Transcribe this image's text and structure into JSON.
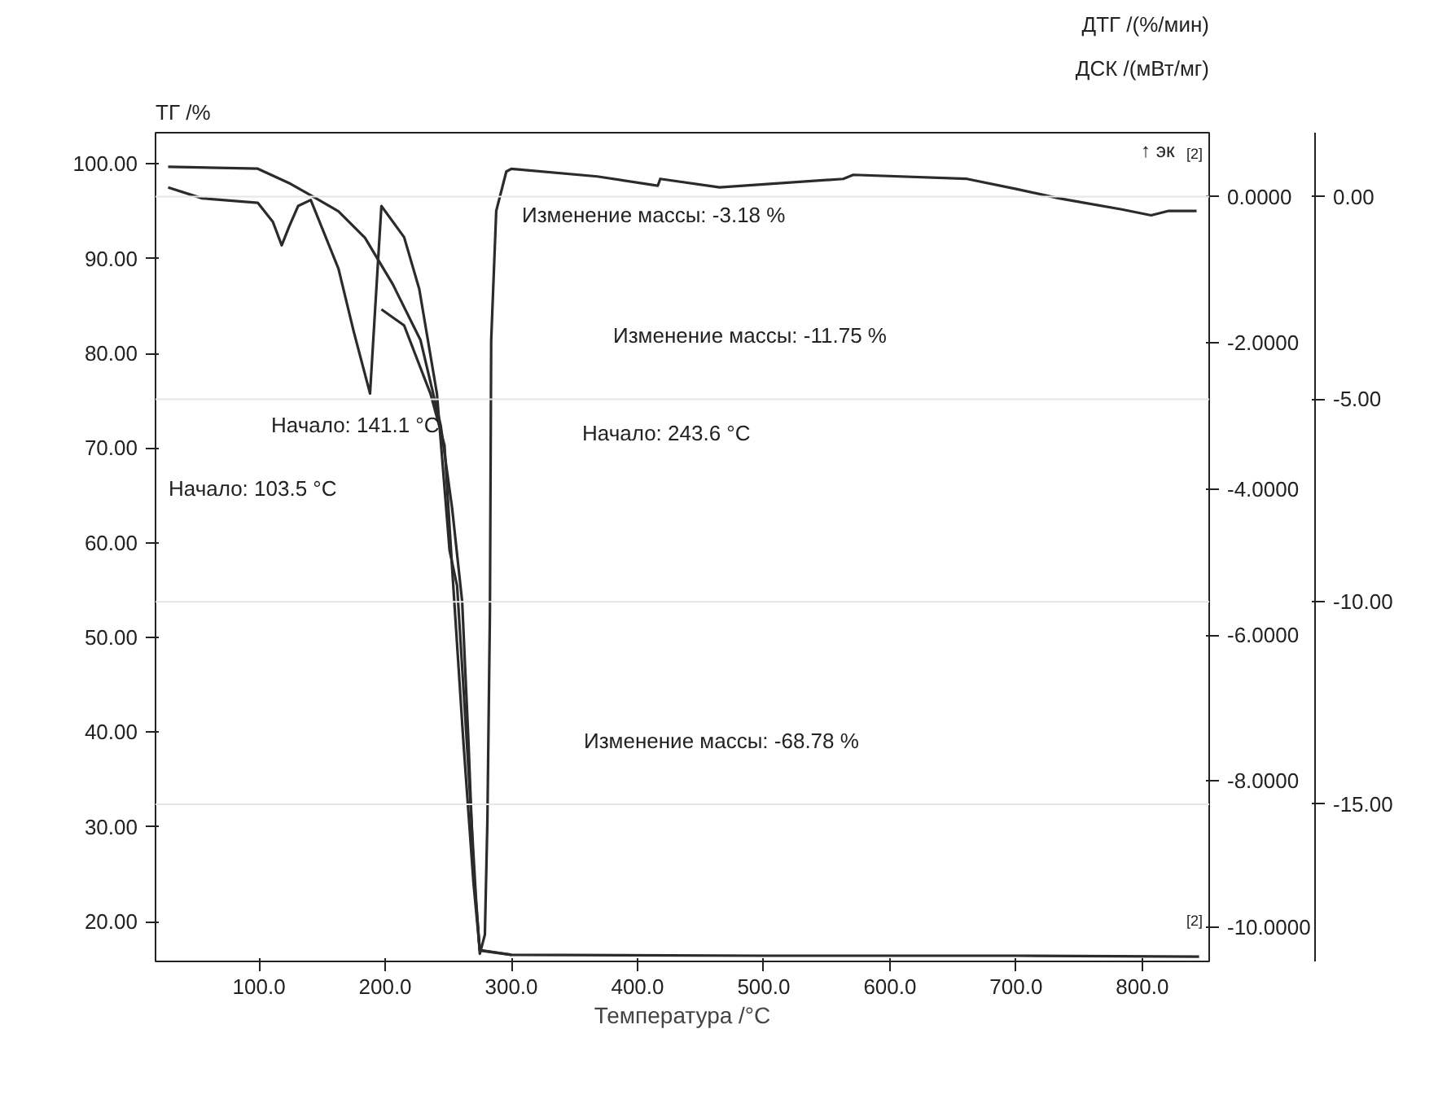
{
  "chart_data": {
    "type": "line",
    "xlabel": "Температура /°C",
    "ylabel": "ТГ /%",
    "y2label": "ДСК /(мВт/мг)",
    "y3label": "ДТГ /(%/мин)",
    "xlim": [
      18,
      853
    ],
    "xticks": [
      {
        "value": 100,
        "label": "100.0"
      },
      {
        "value": 200,
        "label": "200.0"
      },
      {
        "value": 300,
        "label": "300.0"
      },
      {
        "value": 400,
        "label": "400.0"
      },
      {
        "value": 500,
        "label": "500.0"
      },
      {
        "value": 600,
        "label": "600.0"
      },
      {
        "value": 700,
        "label": "700.0"
      },
      {
        "value": 800,
        "label": "800.0"
      }
    ],
    "ylim": [
      15.8,
      103.3
    ],
    "yticks": [
      {
        "value": 20,
        "label": "20.00"
      },
      {
        "value": 30,
        "label": "30.00"
      },
      {
        "value": 40,
        "label": "40.00"
      },
      {
        "value": 50,
        "label": "50.00"
      },
      {
        "value": 60,
        "label": "60.00"
      },
      {
        "value": 70,
        "label": "70.00"
      },
      {
        "value": 80,
        "label": "80.00"
      },
      {
        "value": 90,
        "label": "90.00"
      },
      {
        "value": 100,
        "label": "100.00"
      }
    ],
    "y2lim": [
      -10.47,
      0.88
    ],
    "y2ticks": [
      {
        "value": 0,
        "label": "0.0000"
      },
      {
        "value": -2,
        "label": "-2.0000"
      },
      {
        "value": -4,
        "label": "-4.0000"
      },
      {
        "value": -6,
        "label": "-6.0000"
      },
      {
        "value": -8,
        "label": "-8.0000"
      },
      {
        "value": -10,
        "label": "-10.0000"
      }
    ],
    "y3lim": [
      -18.88,
      1.58
    ],
    "y3ticks": [
      {
        "value": 0,
        "label": "0.00"
      },
      {
        "value": -5,
        "label": "-5.00"
      },
      {
        "value": -10,
        "label": "-10.00"
      },
      {
        "value": -15,
        "label": "-15.00"
      }
    ],
    "ref_lines": [
      {
        "axis": "y3",
        "value": 0,
        "color": "#e6e6e6"
      },
      {
        "axis": "y3",
        "value": -5,
        "color": "#e6e6e6"
      },
      {
        "axis": "y3",
        "value": -10,
        "color": "#e6e6e6"
      },
      {
        "axis": "y3",
        "value": -15,
        "color": "#e6e6e6"
      }
    ],
    "series": [
      {
        "color": "#2b2b2b",
        "x": [
          28,
          99,
          125,
          141,
          163,
          184,
          206,
          228,
          244,
          253,
          261,
          266,
          270,
          275,
          300,
          500,
          700,
          845
        ],
        "values": [
          99.7,
          99.5,
          97.9,
          96.7,
          95.0,
          92.2,
          87.3,
          81.4,
          72.4,
          63.7,
          53.8,
          39.0,
          25.2,
          17.0,
          16.5,
          16.4,
          16.4,
          16.3
        ]
      },
      {
        "color": "#2b2b2b",
        "axis": "y2",
        "x": [
          197,
          215,
          236,
          247,
          253,
          262,
          270,
          275,
          300
        ],
        "values": [
          -1.54,
          -1.76,
          -2.7,
          -3.4,
          -5.07,
          -7.47,
          -9.4,
          -10.32,
          -10.38
        ]
      },
      {
        "color": "#2b2b2b",
        "axis": "y3",
        "x": [
          28,
          55,
          99,
          111,
          118,
          124,
          131,
          141,
          163,
          175,
          188,
          193,
          197,
          215,
          227,
          241,
          251,
          257,
          266,
          272,
          275,
          279,
          281,
          283,
          284,
          288,
          296,
          300,
          368,
          416,
          418,
          465,
          563,
          571,
          661,
          700,
          734,
          783,
          807,
          821,
          843
        ],
        "values": [
          0.23,
          -0.04,
          -0.15,
          -0.62,
          -1.2,
          -0.73,
          -0.23,
          -0.08,
          -1.78,
          -3.32,
          -4.86,
          -2.28,
          -0.23,
          -1.0,
          -2.28,
          -4.86,
          -8.73,
          -9.61,
          -14.13,
          -17.34,
          -18.69,
          -18.22,
          -15.41,
          -10.27,
          -3.55,
          -0.35,
          0.62,
          0.69,
          0.5,
          0.27,
          0.44,
          0.23,
          0.44,
          0.54,
          0.44,
          0.19,
          -0.04,
          -0.31,
          -0.46,
          -0.35,
          -0.35
        ]
      }
    ],
    "annotations": [
      "Изменение массы: -3.18 %",
      "Изменение массы: -11.75 %",
      "Начало: 141.1 °C",
      "Начало: 243.6 °C",
      "Начало: 103.5 °C",
      "Изменение массы: -68.78 %",
      "↑ эк",
      "[2]",
      "[2]"
    ],
    "line_style": "solid",
    "marker": "none",
    "grid": false
  }
}
